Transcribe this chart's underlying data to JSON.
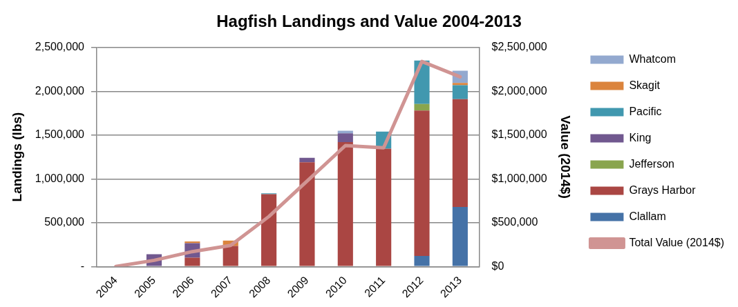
{
  "chart_data": {
    "type": "bar",
    "title": "Hagfish Landings and Value 2004-2013",
    "ylabel": "Landings (lbs)",
    "y2label": "Value (2014$)",
    "categories": [
      "2004",
      "2005",
      "2006",
      "2007",
      "2008",
      "2009",
      "2010",
      "2011",
      "2012",
      "2013"
    ],
    "stacked": true,
    "grid": "y",
    "legend": "right",
    "ylim": [
      0,
      2500000
    ],
    "yticks": [
      {
        "value": 0,
        "label": "-"
      },
      {
        "value": 500000,
        "label": "500,000"
      },
      {
        "value": 1000000,
        "label": "1,000,000"
      },
      {
        "value": 1500000,
        "label": "1,500,000"
      },
      {
        "value": 2000000,
        "label": "2,000,000"
      },
      {
        "value": 2500000,
        "label": "2,500,000"
      }
    ],
    "y2lim": [
      0,
      2500000
    ],
    "y2ticks": [
      {
        "value": 0,
        "label": "$0"
      },
      {
        "value": 500000,
        "label": "$500,000"
      },
      {
        "value": 1000000,
        "label": "$1,000,000"
      },
      {
        "value": 1500000,
        "label": "$1,500,000"
      },
      {
        "value": 2000000,
        "label": "$2,000,000"
      },
      {
        "value": 2500000,
        "label": "$2,500,000"
      }
    ],
    "series": [
      {
        "name": "Clallam",
        "color": "#4572a7",
        "values": [
          null,
          null,
          null,
          null,
          null,
          null,
          null,
          null,
          120000,
          680000
        ]
      },
      {
        "name": "Grays Harbor",
        "color": "#aa4643",
        "values": [
          null,
          null,
          100000,
          235000,
          825000,
          1190000,
          1420000,
          1345000,
          1660000,
          1230000
        ]
      },
      {
        "name": "Jefferson",
        "color": "#89a54e",
        "values": [
          null,
          null,
          null,
          null,
          null,
          null,
          null,
          null,
          75000,
          null
        ]
      },
      {
        "name": "King",
        "color": "#71588f",
        "values": [
          null,
          140000,
          165000,
          null,
          null,
          50000,
          100000,
          null,
          null,
          null
        ]
      },
      {
        "name": "Pacific",
        "color": "#4198af",
        "values": [
          null,
          null,
          null,
          null,
          10000,
          null,
          null,
          195000,
          495000,
          160000
        ]
      },
      {
        "name": "Skagit",
        "color": "#db843d",
        "values": [
          null,
          null,
          20000,
          60000,
          null,
          null,
          null,
          null,
          null,
          25000
        ]
      },
      {
        "name": "Whatcom",
        "color": "#93a9cf",
        "values": [
          null,
          null,
          null,
          null,
          null,
          null,
          30000,
          null,
          null,
          140000
        ]
      },
      {
        "name": "Total Value (2014$)",
        "type": "line",
        "axis": "y2",
        "color": "#d09493",
        "values": [
          0,
          70000,
          170000,
          240000,
          570000,
          975000,
          1380000,
          1355000,
          2340000,
          2165000
        ]
      }
    ]
  }
}
